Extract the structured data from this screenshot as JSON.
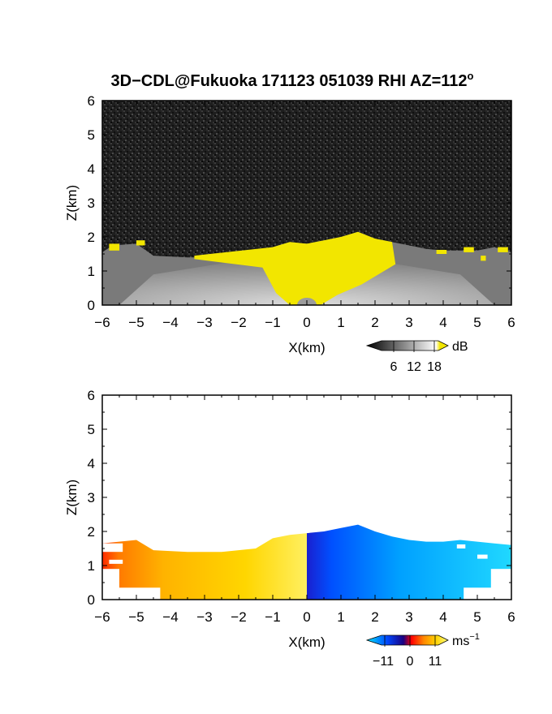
{
  "chart_data": [
    {
      "type": "heatmap",
      "title": "3D−CDL@Fukuoka 171123 051039 RHI AZ=112",
      "title_superscript": "o",
      "xlabel": "X(km)",
      "ylabel": "Z(km)",
      "xlim": [
        -6,
        6
      ],
      "ylim": [
        0,
        6
      ],
      "xticks": [
        "−6",
        "−5",
        "−4",
        "−3",
        "−2",
        "−1",
        "0",
        "1",
        "2",
        "3",
        "4",
        "5",
        "6"
      ],
      "yticks": [
        "0",
        "1",
        "2",
        "3",
        "4",
        "5",
        "6"
      ],
      "top_boundary_km": [
        {
          "x": -6.0,
          "z": 1.55
        },
        {
          "x": -5.7,
          "z": 1.75
        },
        {
          "x": -5.0,
          "z": 1.8
        },
        {
          "x": -4.5,
          "z": 1.45
        },
        {
          "x": -3.5,
          "z": 1.4
        },
        {
          "x": -2.5,
          "z": 1.4
        },
        {
          "x": -1.5,
          "z": 1.45
        },
        {
          "x": -1.0,
          "z": 1.7
        },
        {
          "x": -0.5,
          "z": 1.85
        },
        {
          "x": 0.0,
          "z": 1.8
        },
        {
          "x": 0.5,
          "z": 1.9
        },
        {
          "x": 1.0,
          "z": 2.0
        },
        {
          "x": 1.5,
          "z": 2.15
        },
        {
          "x": 2.0,
          "z": 1.95
        },
        {
          "x": 2.5,
          "z": 1.85
        },
        {
          "x": 3.0,
          "z": 1.75
        },
        {
          "x": 3.5,
          "z": 1.65
        },
        {
          "x": 4.0,
          "z": 1.6
        },
        {
          "x": 5.0,
          "z": 1.6
        },
        {
          "x": 5.5,
          "z": 1.7
        },
        {
          "x": 6.0,
          "z": 1.55
        }
      ],
      "colorbar": {
        "label": "dB",
        "ticks": [
          "6",
          "12",
          "18"
        ],
        "range": [
          0,
          20
        ],
        "colors": [
          "#000000",
          "#ffffff",
          "#f2e600"
        ]
      }
    },
    {
      "type": "heatmap",
      "xlabel": "X(km)",
      "ylabel": "Z(km)",
      "xlim": [
        -6,
        6
      ],
      "ylim": [
        0,
        6
      ],
      "xticks": [
        "−6",
        "−5",
        "−4",
        "−3",
        "−2",
        "−1",
        "0",
        "1",
        "2",
        "3",
        "4",
        "5",
        "6"
      ],
      "yticks": [
        "0",
        "1",
        "2",
        "3",
        "4",
        "5",
        "6"
      ],
      "top_boundary_km": [
        {
          "x": -6.0,
          "z": 1.65
        },
        {
          "x": -5.0,
          "z": 1.75
        },
        {
          "x": -4.5,
          "z": 1.45
        },
        {
          "x": -3.5,
          "z": 1.4
        },
        {
          "x": -2.5,
          "z": 1.4
        },
        {
          "x": -1.5,
          "z": 1.5
        },
        {
          "x": -1.0,
          "z": 1.8
        },
        {
          "x": -0.5,
          "z": 1.9
        },
        {
          "x": 0.0,
          "z": 1.95
        },
        {
          "x": 0.5,
          "z": 2.0
        },
        {
          "x": 1.0,
          "z": 2.1
        },
        {
          "x": 1.5,
          "z": 2.2
        },
        {
          "x": 2.0,
          "z": 2.0
        },
        {
          "x": 2.5,
          "z": 1.85
        },
        {
          "x": 3.0,
          "z": 1.75
        },
        {
          "x": 3.5,
          "z": 1.7
        },
        {
          "x": 4.0,
          "z": 1.7
        },
        {
          "x": 4.5,
          "z": 1.75
        },
        {
          "x": 5.0,
          "z": 1.7
        },
        {
          "x": 5.5,
          "z": 1.65
        },
        {
          "x": 6.0,
          "z": 1.6
        }
      ],
      "colorbar": {
        "label": "ms",
        "label_superscript": "−1",
        "ticks": [
          "−11",
          "0",
          "11"
        ],
        "range": [
          -15,
          15
        ],
        "colors": [
          "#00e5ff",
          "#0047ff",
          "#1a0080",
          "#ff0000",
          "#ff8800",
          "#ffd200",
          "#ffff80"
        ]
      }
    }
  ]
}
